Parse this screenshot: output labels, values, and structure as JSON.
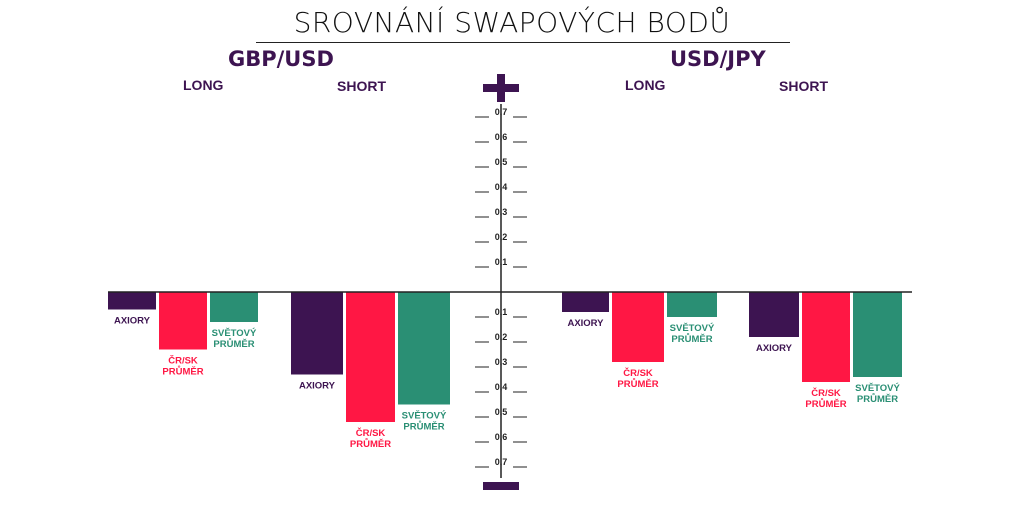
{
  "title": "SROVNÁNÍ SWAPOVÝCH BODŮ",
  "colors": {
    "axiory": "#3d1451",
    "cr_sk": "#ff1744",
    "svet": "#2a8f74",
    "axis": "#222222"
  },
  "icons": {
    "top": "plus-icon",
    "bottom": "minus-icon"
  },
  "pairs": [
    {
      "name": "GBP/USD",
      "long_label": "LONG",
      "short_label": "SHORT"
    },
    {
      "name": "USD/JPY",
      "long_label": "LONG",
      "short_label": "SHORT"
    }
  ],
  "chart_data": {
    "type": "bar",
    "title": "SROVNÁNÍ SWAPOVÝCH BODŮ",
    "ylim": [
      -0.7,
      0.7
    ],
    "yticks": [
      "0,7",
      "0,6",
      "0,5",
      "0,4",
      "0,3",
      "0,2",
      "0,1",
      "0,1",
      "0,2",
      "0,3",
      "0,4",
      "0,5",
      "0,6",
      "0,7"
    ],
    "series_labels": [
      {
        "key": "axiory",
        "lines": [
          "AXIORY"
        ]
      },
      {
        "key": "cr_sk",
        "lines": [
          "ČR/SK",
          "PRŮMĚR"
        ]
      },
      {
        "key": "svet",
        "lines": [
          "SVĚTOVÝ",
          "PRŮMĚR"
        ]
      }
    ],
    "groups": [
      {
        "pair": "GBP/USD",
        "side": "LONG",
        "values": {
          "axiory": -0.07,
          "cr_sk": -0.23,
          "svet": -0.12
        }
      },
      {
        "pair": "GBP/USD",
        "side": "SHORT",
        "values": {
          "axiory": -0.33,
          "cr_sk": -0.52,
          "svet": -0.45
        }
      },
      {
        "pair": "USD/JPY",
        "side": "LONG",
        "values": {
          "axiory": -0.08,
          "cr_sk": -0.28,
          "svet": -0.1
        }
      },
      {
        "pair": "USD/JPY",
        "side": "SHORT",
        "values": {
          "axiory": -0.18,
          "cr_sk": -0.36,
          "svet": -0.34
        }
      }
    ]
  }
}
